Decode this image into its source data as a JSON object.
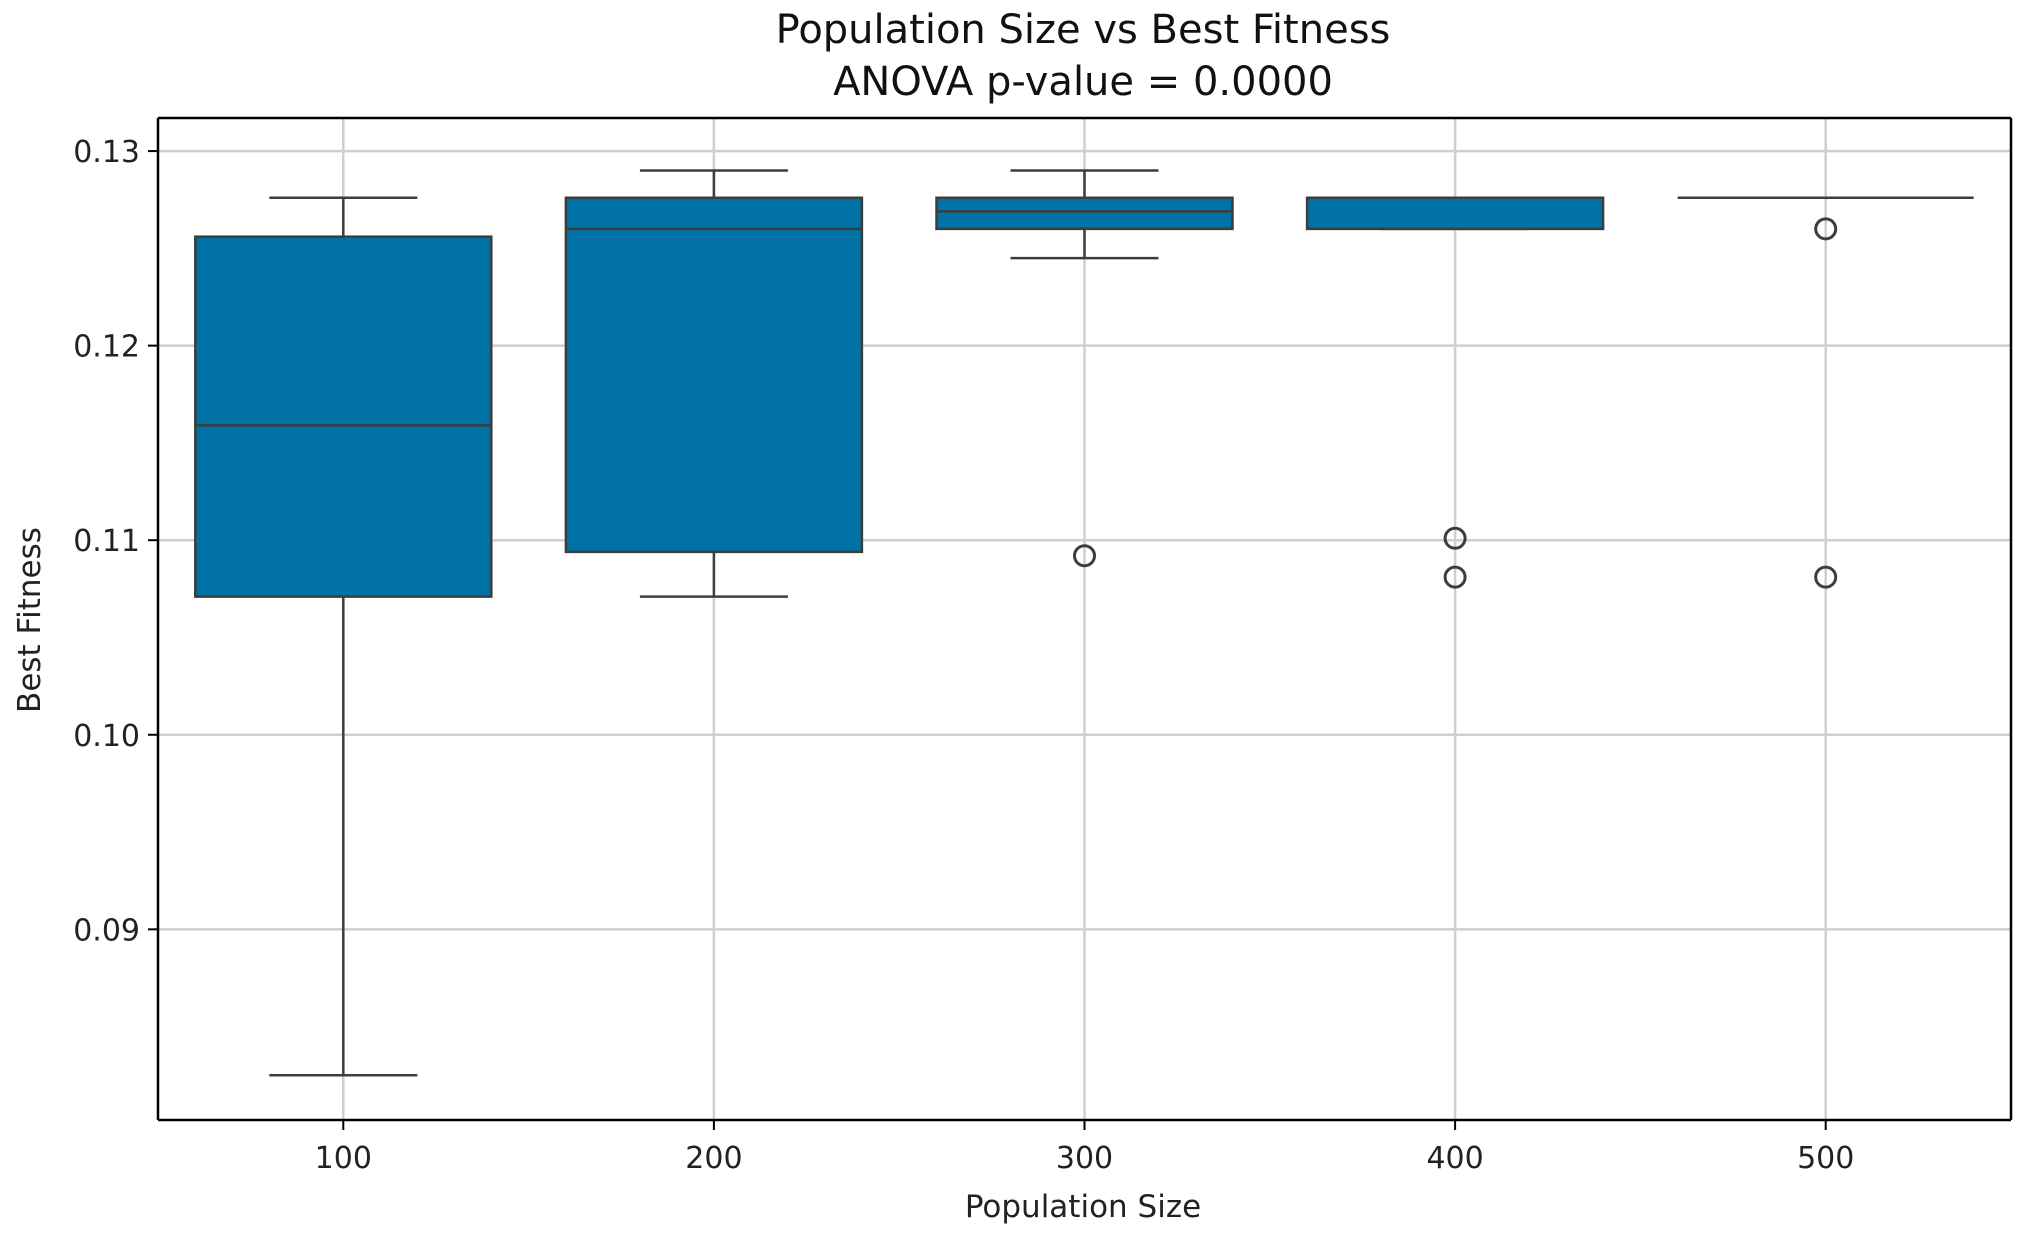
{
  "chart_data": {
    "type": "box",
    "title": "Population Size vs Best Fitness",
    "subtitle": "ANOVA p-value = 0.0000",
    "xlabel": "Population Size",
    "ylabel": "Best Fitness",
    "categories": [
      "100",
      "200",
      "300",
      "400",
      "500"
    ],
    "ylim": [
      0.0802,
      0.1317
    ],
    "yticks": [
      0.09,
      0.1,
      0.11,
      0.12,
      0.13
    ],
    "ytick_labels": [
      "0.09",
      "0.10",
      "0.11",
      "0.12",
      "0.13"
    ],
    "grid": true,
    "box_color": "#0072a6",
    "line_color": "#3d3d3d",
    "grid_color": "#cfcfcf",
    "boxes": [
      {
        "category": "100",
        "whisker_low": 0.0825,
        "q1": 0.1071,
        "median": 0.1159,
        "q3": 0.1256,
        "whisker_high": 0.1276,
        "outliers": []
      },
      {
        "category": "200",
        "whisker_low": 0.1071,
        "q1": 0.1094,
        "median": 0.126,
        "q3": 0.1276,
        "whisker_high": 0.129,
        "outliers": []
      },
      {
        "category": "300",
        "whisker_low": 0.1245,
        "q1": 0.126,
        "median": 0.1269,
        "q3": 0.1276,
        "whisker_high": 0.129,
        "outliers": [
          0.1092
        ]
      },
      {
        "category": "400",
        "whisker_low": 0.126,
        "q1": 0.126,
        "median": 0.1276,
        "q3": 0.1276,
        "whisker_high": 0.1276,
        "outliers": [
          0.1101,
          0.1081
        ]
      },
      {
        "category": "500",
        "whisker_low": 0.1276,
        "q1": 0.1276,
        "median": 0.1276,
        "q3": 0.1276,
        "whisker_high": 0.1276,
        "outliers": [
          0.126,
          0.1081
        ]
      }
    ]
  }
}
